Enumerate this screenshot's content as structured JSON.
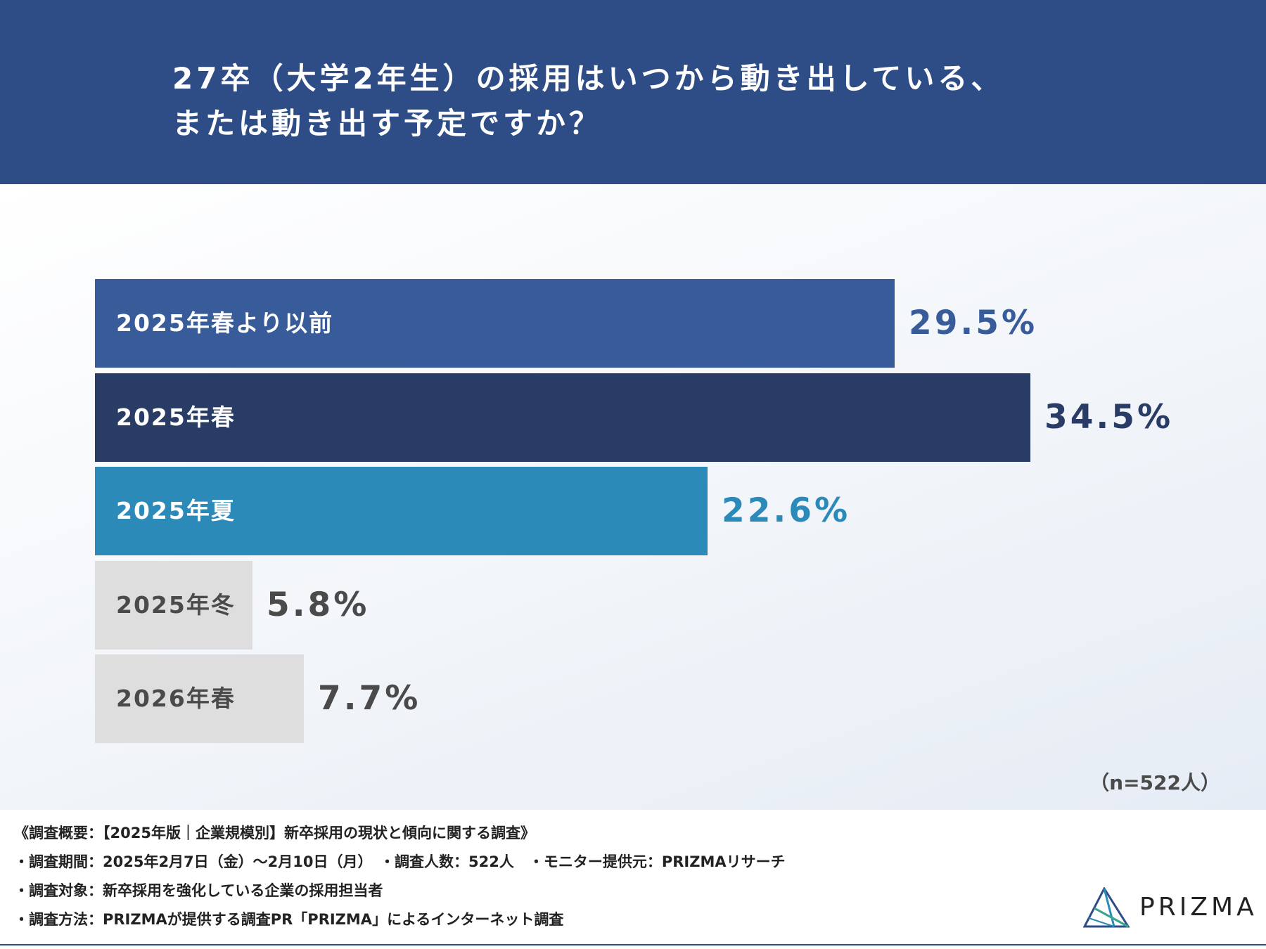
{
  "title": {
    "line1": "27卒（大学2年生）の採用はいつから動き出している、",
    "line2": "または動き出す予定ですか？"
  },
  "sample_size": "（n=522人）",
  "colors": {
    "header": "#2e4c86",
    "bar_before_spring_2025": "#385b99",
    "bar_spring_2025": "#283c66",
    "bar_summer_2025": "#2c8ab9",
    "bar_gray": "#dedede",
    "label_gray": "#4a4a4a"
  },
  "chart_data": {
    "type": "bar",
    "orientation": "horizontal",
    "title": "27卒（大学2年生）の採用はいつから動き出している、または動き出す予定ですか？",
    "categories": [
      "2025年春より以前",
      "2025年春",
      "2025年夏",
      "2025年冬",
      "2026年春"
    ],
    "values": [
      29.5,
      34.5,
      22.6,
      5.8,
      7.7
    ],
    "value_labels": [
      "29.5%",
      "34.5%",
      "22.6%",
      "5.8%",
      "7.7%"
    ],
    "bar_colors": [
      "#385b99",
      "#283c66",
      "#2c8ab9",
      "#dedede",
      "#dedede"
    ],
    "label_colors": [
      "#ffffff",
      "#ffffff",
      "#ffffff",
      "#4a4a4a",
      "#4a4a4a"
    ],
    "value_colors": [
      "#385b99",
      "#283c66",
      "#2c8ab9",
      "#4a4a4a",
      "#4a4a4a"
    ],
    "unit": "%",
    "xlim": [
      0,
      34.5
    ]
  },
  "footer": {
    "summary": "《調査概要：【2025年版｜企業規模別】新卒採用の現状と傾向に関する調査》",
    "period": "・調査期間：2025年2月7日（金）〜2月10日（月）　・調査人数：522人　・モニター提供元：PRIZMAリサーチ",
    "target": "・調査対象：新卒採用を強化している企業の採用担当者",
    "method": "・調査方法：PRIZMAが提供する調査PR「PRIZMA」によるインターネット調査",
    "logo_text": "PRIZMA"
  }
}
